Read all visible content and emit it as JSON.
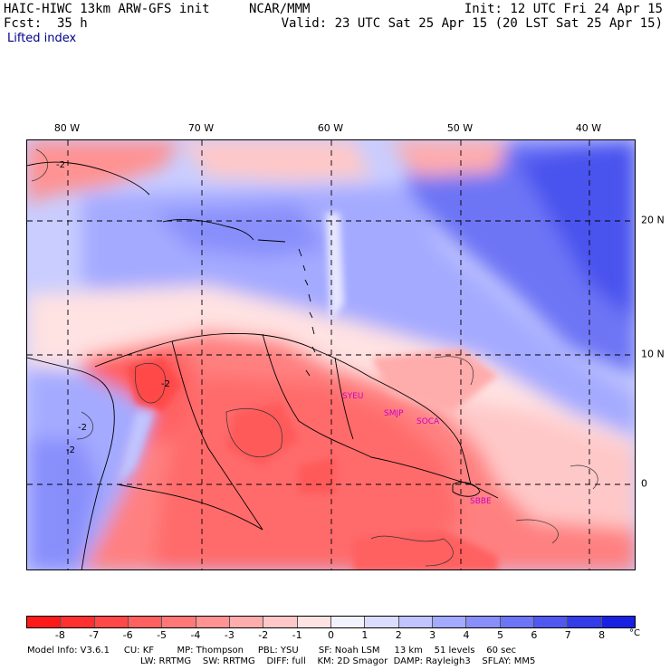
{
  "header": {
    "model_title": "HAIC-HIWC 13km ARW-GFS init",
    "org": "NCAR/MMM",
    "init": "Init: 12 UTC Fri 24 Apr 15",
    "fcst": "Fcst:  35 h",
    "valid": "Valid: 23 UTC Sat 25 Apr 15 (20 LST Sat 25 Apr 15)",
    "field": "Lifted index"
  },
  "map": {
    "lon_labels": [
      "80 W",
      "70 W",
      "60 W",
      "50 W",
      "40 W"
    ],
    "lat_labels": [
      "20 N",
      "10 N",
      "0"
    ],
    "contour_labels": [
      "-2",
      "-2",
      "-2",
      "-2"
    ],
    "stations": [
      "SYEU",
      "SMJP",
      "SOCA",
      "SBBE"
    ]
  },
  "colorbar": {
    "ticks": [
      "-8",
      "-7",
      "-6",
      "-5",
      "-4",
      "-3",
      "-2",
      "-1",
      "0",
      "1",
      "2",
      "3",
      "4",
      "5",
      "6",
      "7",
      "8"
    ],
    "unit": "°C",
    "colors": [
      "#ff1a1a",
      "#ff3030",
      "#ff4848",
      "#ff6060",
      "#ff7878",
      "#ff9292",
      "#ffacac",
      "#ffc8c8",
      "#ffe2e2",
      "#f2f2ff",
      "#dcdcff",
      "#c0c4ff",
      "#a4aaff",
      "#888ffb",
      "#6d74f5",
      "#5058ef",
      "#333ce8",
      "#1820e2"
    ]
  },
  "footer": {
    "line1": "Model Info: V3.6.1     CU: KF        MP: Thompson     PBL: YSU       SF: Noah LSM     13 km    51 levels    60 sec",
    "line2": "LW: RRTMG    SW: RRTMG    DIFF: full    KM: 2D Smagor  DAMP: Rayleigh3    SFLAY: MM5"
  }
}
